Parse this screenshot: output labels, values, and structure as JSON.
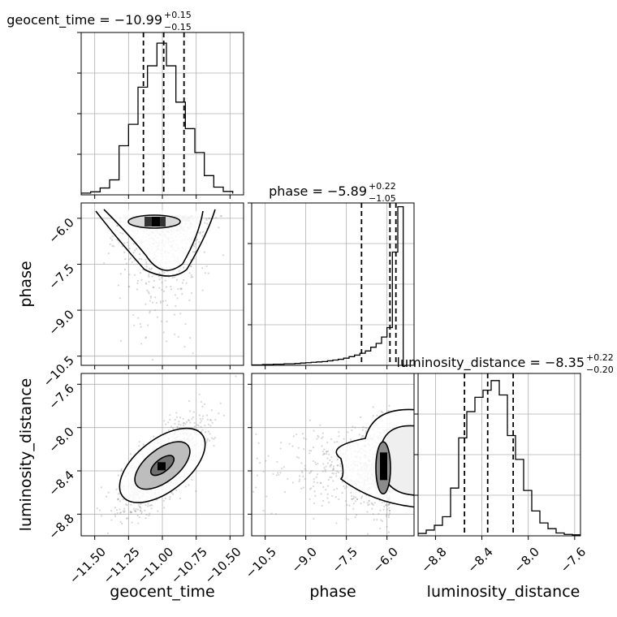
{
  "chart_data": {
    "type": "corner",
    "parameters": [
      "geocent_time",
      "phase",
      "luminosity_distance"
    ],
    "panels": [
      {
        "id": "geocent_time",
        "type": "histogram",
        "title": {
          "text": "geocent_time = −10.99",
          "sup": "+0.15",
          "sub": "−0.15"
        },
        "median": -10.99,
        "quantiles": [
          -11.14,
          -10.99,
          -10.84
        ],
        "xlim": [
          -11.6,
          -10.4
        ],
        "bins": [
          -11.6,
          -11.53,
          -11.46,
          -11.39,
          -11.32,
          -11.25,
          -11.18,
          -11.11,
          -11.04,
          -10.97,
          -10.9,
          -10.83,
          -10.76,
          -10.69,
          -10.62,
          -10.55,
          -10.48
        ],
        "counts": [
          4,
          7,
          16,
          35,
          115,
          165,
          252,
          302,
          355,
          302,
          217,
          155,
          99,
          45,
          18,
          8,
          3
        ],
        "ymax": 380
      },
      {
        "id": "phase",
        "type": "histogram",
        "title": {
          "text": "phase = −5.89",
          "sup": "+0.22",
          "sub": "−1.05"
        },
        "median": -5.89,
        "quantiles": [
          -6.94,
          -5.89,
          -5.67
        ],
        "xlim": [
          -11.0,
          -5.0
        ],
        "bins": [
          -11.0,
          -10.8,
          -10.6,
          -10.4,
          -10.2,
          -10.0,
          -9.8,
          -9.6,
          -9.4,
          -9.2,
          -9.0,
          -8.8,
          -8.6,
          -8.4,
          -8.2,
          -8.0,
          -7.8,
          -7.6,
          -7.4,
          -7.2,
          -7.0,
          -6.8,
          -6.6,
          -6.4,
          -6.2,
          -6.0,
          -5.8,
          -5.6,
          -5.4
        ],
        "counts": [
          1,
          1,
          2,
          2,
          3,
          3,
          4,
          4,
          5,
          6,
          7,
          8,
          9,
          10,
          12,
          14,
          16,
          19,
          23,
          27,
          32,
          38,
          48,
          58,
          75,
          100,
          300,
          420
        ],
        "ymax": 430
      },
      {
        "id": "luminosity_distance",
        "type": "histogram",
        "title": {
          "text": "luminosity_distance = −8.35",
          "sup": "+0.22",
          "sub": "−0.20"
        },
        "median": -8.35,
        "quantiles": [
          -8.55,
          -8.35,
          -8.13
        ],
        "xlim": [
          -8.95,
          -7.55
        ],
        "bins": [
          -8.95,
          -8.88,
          -8.81,
          -8.74,
          -8.67,
          -8.6,
          -8.53,
          -8.46,
          -8.39,
          -8.32,
          -8.25,
          -8.18,
          -8.11,
          -8.04,
          -7.97,
          -7.9,
          -7.83,
          -7.76,
          -7.69,
          -7.62,
          -7.55
        ],
        "counts": [
          5,
          12,
          22,
          40,
          100,
          205,
          260,
          290,
          305,
          325,
          295,
          210,
          160,
          95,
          52,
          27,
          15,
          6,
          3,
          2
        ],
        "ymax": 340
      },
      {
        "id": "geocent_time-phase",
        "type": "scatter-density",
        "x_param": "geocent_time",
        "y_param": "phase",
        "xlim": [
          -11.6,
          -10.4
        ],
        "ylim": [
          -10.8,
          -5.5
        ],
        "center": [
          -11.0,
          -5.95
        ]
      },
      {
        "id": "geocent_time-luminosity_distance",
        "type": "scatter-density",
        "x_param": "geocent_time",
        "y_param": "luminosity_distance",
        "xlim": [
          -11.6,
          -10.4
        ],
        "ylim": [
          -9.0,
          -7.5
        ],
        "center": [
          -11.0,
          -8.35
        ]
      },
      {
        "id": "phase-luminosity_distance",
        "type": "scatter-density",
        "x_param": "phase",
        "y_param": "luminosity_distance",
        "xlim": [
          -11.0,
          -5.0
        ],
        "ylim": [
          -9.0,
          -7.5
        ],
        "center": [
          -5.9,
          -8.35
        ]
      }
    ],
    "ticks": {
      "geocent_time": [
        "−11.50",
        "−11.25",
        "−11.00",
        "−10.75",
        "−10.50"
      ],
      "phase": [
        "−10.5",
        "−9.0",
        "−7.5",
        "−6.0"
      ],
      "luminosity_distance": [
        "−8.8",
        "−8.4",
        "−8.0",
        "−7.6"
      ]
    },
    "tick_values": {
      "geocent_time": [
        -11.5,
        -11.25,
        -11.0,
        -10.75,
        -10.5
      ],
      "phase": [
        -10.5,
        -9.0,
        -7.5,
        -6.0
      ],
      "luminosity_distance": [
        -8.8,
        -8.4,
        -8.0,
        -7.6
      ]
    },
    "axis_labels": {
      "x": [
        "geocent_time",
        "phase",
        "luminosity_distance"
      ],
      "y": [
        "phase",
        "luminosity_distance"
      ]
    },
    "grid": true,
    "colors": {
      "line": "#000000",
      "grid": "#b0b0b0",
      "scatter": "#8c8c8c"
    }
  }
}
